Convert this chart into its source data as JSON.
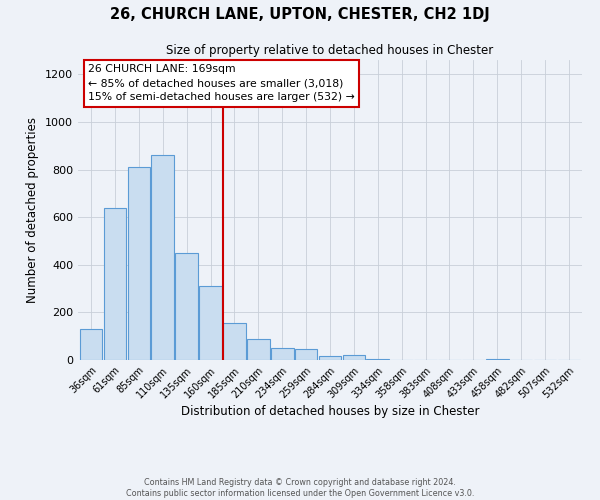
{
  "title": "26, CHURCH LANE, UPTON, CHESTER, CH2 1DJ",
  "subtitle": "Size of property relative to detached houses in Chester",
  "xlabel": "Distribution of detached houses by size in Chester",
  "ylabel": "Number of detached properties",
  "categories": [
    "36sqm",
    "61sqm",
    "85sqm",
    "110sqm",
    "135sqm",
    "160sqm",
    "185sqm",
    "210sqm",
    "234sqm",
    "259sqm",
    "284sqm",
    "309sqm",
    "334sqm",
    "358sqm",
    "383sqm",
    "408sqm",
    "433sqm",
    "458sqm",
    "482sqm",
    "507sqm",
    "532sqm"
  ],
  "values": [
    130,
    640,
    810,
    860,
    450,
    310,
    155,
    90,
    50,
    45,
    15,
    20,
    5,
    0,
    0,
    0,
    0,
    5,
    0,
    0,
    0
  ],
  "bar_color": "#c9ddf0",
  "bar_edge_color": "#5b9bd5",
  "vline_color": "#cc0000",
  "vline_bin": 6,
  "ylim": [
    0,
    1260
  ],
  "yticks": [
    0,
    200,
    400,
    600,
    800,
    1000,
    1200
  ],
  "annotation_title": "26 CHURCH LANE: 169sqm",
  "annotation_line1": "← 85% of detached houses are smaller (3,018)",
  "annotation_line2": "15% of semi-detached houses are larger (532) →",
  "annotation_box_edgecolor": "#cc0000",
  "annotation_box_facecolor": "#ffffff",
  "grid_color": "#c8cfd8",
  "background_color": "#eef2f8",
  "footer_line1": "Contains HM Land Registry data © Crown copyright and database right 2024.",
  "footer_line2": "Contains public sector information licensed under the Open Government Licence v3.0."
}
